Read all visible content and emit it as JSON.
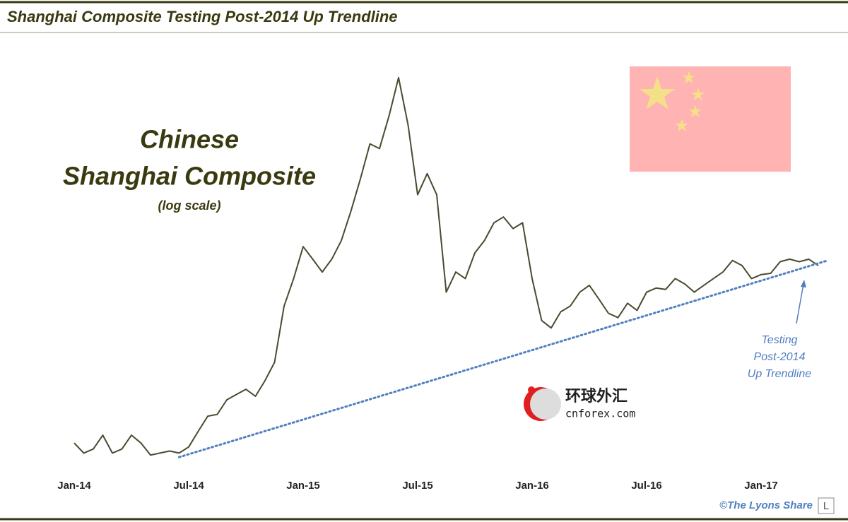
{
  "chart_data": {
    "type": "line",
    "title": "Shanghai Composite Testing Post-2014 Up Trendline",
    "heading": [
      "Chinese",
      "Shanghai Composite"
    ],
    "subheading": "(log scale)",
    "annotation": [
      "Testing",
      "Post-2014",
      "Up Trendline"
    ],
    "credit": "©The Lyons Share",
    "credit_logo": "L",
    "watermark": [
      "环球外汇",
      "cnforex.com"
    ],
    "log_scale": true,
    "color": "#4a4a30",
    "ylim": [
      1900,
      5500
    ],
    "categories": [
      "Jan-14",
      null,
      null,
      null,
      null,
      null,
      null,
      null,
      null,
      null,
      null,
      null,
      "Jul-14",
      null,
      null,
      null,
      null,
      null,
      null,
      null,
      null,
      null,
      null,
      null,
      "Jan-15",
      null,
      null,
      null,
      null,
      null,
      null,
      null,
      null,
      null,
      null,
      null,
      "Jul-15",
      null,
      null,
      null,
      null,
      null,
      null,
      null,
      null,
      null,
      null,
      null,
      "Jan-16",
      null,
      null,
      null,
      null,
      null,
      null,
      null,
      null,
      null,
      null,
      null,
      "Jul-16",
      null,
      null,
      null,
      null,
      null,
      null,
      null,
      null,
      null,
      null,
      null,
      "Jan-17",
      null,
      null,
      null,
      null,
      null,
      null
    ],
    "values": [
      2080,
      2030,
      2050,
      2120,
      2030,
      2050,
      2120,
      2080,
      2020,
      2030,
      2040,
      2030,
      2060,
      2140,
      2220,
      2230,
      2310,
      2340,
      2370,
      2330,
      2420,
      2530,
      2900,
      3100,
      3350,
      3250,
      3150,
      3250,
      3400,
      3650,
      3950,
      4300,
      4250,
      4600,
      5050,
      4500,
      3800,
      4000,
      3800,
      3000,
      3150,
      3100,
      3300,
      3400,
      3550,
      3600,
      3500,
      3550,
      3100,
      2800,
      2750,
      2860,
      2900,
      3000,
      3050,
      2950,
      2850,
      2820,
      2920,
      2870,
      3000,
      3030,
      3020,
      3100,
      3060,
      3000,
      3050,
      3100,
      3150,
      3240,
      3200,
      3100,
      3130,
      3140,
      3230,
      3250,
      3230,
      3250,
      3200
    ],
    "trendline": {
      "x": [
        11,
        79
      ],
      "values": [
        2010,
        3240
      ],
      "color": "#4f7fc0"
    }
  }
}
